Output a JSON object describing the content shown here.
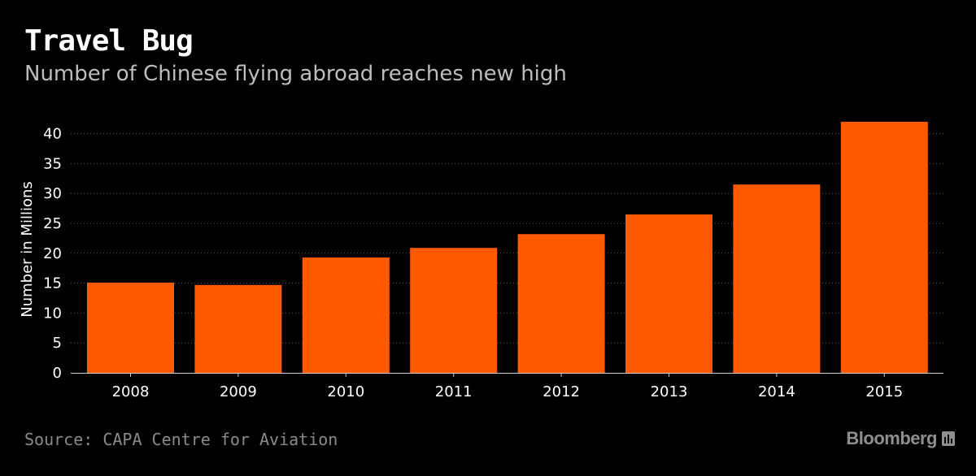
{
  "header": {
    "title": "Travel Bug",
    "subtitle": "Number of Chinese flying abroad reaches new high"
  },
  "footer": {
    "source": "Source: CAPA Centre for Aviation",
    "brand": "Bloomberg"
  },
  "colors": {
    "background": "#000000",
    "bar": "#ff5a00",
    "grid": "#5a5a5a",
    "text": "#ffffff",
    "subtitle": "#bdbdbd",
    "footer": "#8a8a8a"
  },
  "chart_data": {
    "type": "bar",
    "title": "Travel Bug",
    "subtitle": "Number of Chinese flying abroad reaches new high",
    "xlabel": "",
    "ylabel": "Number in Millions",
    "categories": [
      "2008",
      "2009",
      "2010",
      "2011",
      "2012",
      "2013",
      "2014",
      "2015"
    ],
    "values": [
      15.1,
      14.7,
      19.3,
      20.9,
      23.2,
      26.5,
      31.5,
      42.0
    ],
    "ylim": [
      0,
      42
    ],
    "yticks": [
      0,
      5,
      10,
      15,
      20,
      25,
      30,
      35,
      40
    ],
    "grid": true,
    "grid_style": "dotted horizontal",
    "legend": "none"
  }
}
